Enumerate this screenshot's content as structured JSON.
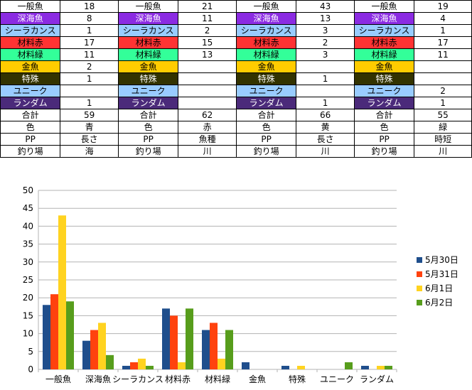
{
  "table": {
    "rows": [
      {
        "category": "一般魚",
        "values": [
          "18",
          "21",
          "43",
          "19"
        ],
        "bg": "#FFFFFF",
        "fg": "#000000"
      },
      {
        "category": "深海魚",
        "values": [
          "8",
          "11",
          "13",
          "4"
        ],
        "bg": "#8B2BE2",
        "fg": "#FFFFFF"
      },
      {
        "category": "シーラカンス",
        "values": [
          "1",
          "2",
          "3",
          "1"
        ],
        "bg": "#99CCFF",
        "fg": "#000000"
      },
      {
        "category": "材料赤",
        "values": [
          "17",
          "15",
          "2",
          "17"
        ],
        "bg": "#FF3333",
        "fg": "#000000"
      },
      {
        "category": "材料緑",
        "values": [
          "11",
          "13",
          "3",
          "11"
        ],
        "bg": "#33FF99",
        "fg": "#000000"
      },
      {
        "category": "金魚",
        "values": [
          "2",
          "",
          "",
          ""
        ],
        "bg": "#FFCC00",
        "fg": "#000000"
      },
      {
        "category": "特殊",
        "values": [
          "1",
          "",
          "1",
          ""
        ],
        "bg": "#333300",
        "fg": "#FFFFFF"
      },
      {
        "category": "ユニーク",
        "values": [
          "",
          "",
          "",
          "2"
        ],
        "bg": "#99CCFF",
        "fg": "#000000"
      },
      {
        "category": "ランダム",
        "values": [
          "1",
          "",
          "1",
          "1"
        ],
        "bg": "#4B2A7A",
        "fg": "#FFFFFF"
      },
      {
        "category": "合計",
        "values": [
          "59",
          "62",
          "66",
          "55"
        ],
        "bg": "#FFFFFF",
        "fg": "#000000"
      },
      {
        "category": "色",
        "values": [
          "青",
          "赤",
          "黄",
          "緑"
        ],
        "bg": "#FFFFFF",
        "fg": "#000000"
      },
      {
        "category": "PP",
        "values": [
          "長さ",
          "魚種",
          "長さ",
          "時短"
        ],
        "bg": "#FFFFFF",
        "fg": "#000000"
      },
      {
        "category": "釣り場",
        "values": [
          "海",
          "川",
          "川",
          "川"
        ],
        "bg": "#FFFFFF",
        "fg": "#000000"
      }
    ]
  },
  "chart_data": {
    "type": "bar",
    "categories": [
      "一般魚",
      "深海魚",
      "シーラカンス",
      "材料赤",
      "材料緑",
      "金魚",
      "特殊",
      "ユニーク",
      "ランダム"
    ],
    "series": [
      {
        "name": "5月30日",
        "values": [
          18,
          8,
          1,
          17,
          11,
          2,
          1,
          0,
          1
        ],
        "color": "#1F4E8C"
      },
      {
        "name": "5月31日",
        "values": [
          21,
          11,
          2,
          15,
          13,
          0,
          0,
          0,
          0
        ],
        "color": "#FF420E"
      },
      {
        "name": "6月1日",
        "values": [
          43,
          13,
          3,
          2,
          3,
          0,
          1,
          0,
          1
        ],
        "color": "#FFD320"
      },
      {
        "name": "6月2日",
        "values": [
          19,
          4,
          1,
          17,
          11,
          0,
          0,
          2,
          1
        ],
        "color": "#579D1C"
      }
    ],
    "yticks": [
      "0",
      "5",
      "10",
      "15",
      "20",
      "25",
      "30",
      "35",
      "40",
      "45",
      "50"
    ],
    "ylim": [
      0,
      50
    ],
    "grid": true,
    "legend": "right"
  }
}
